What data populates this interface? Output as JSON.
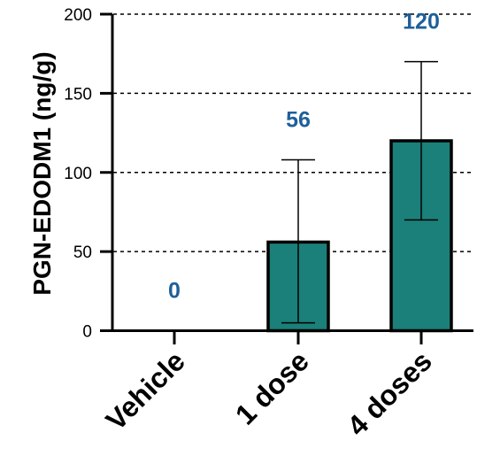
{
  "chart_data": {
    "type": "bar",
    "categories": [
      "Vehicle",
      "1 dose",
      "4 doses"
    ],
    "values": [
      0,
      56,
      120
    ],
    "error_low": [
      0,
      5,
      70
    ],
    "error_high": [
      0,
      108,
      170
    ],
    "data_labels": [
      "0",
      "56",
      "120"
    ],
    "title": "",
    "xlabel": "",
    "ylabel": "PGN-EDODM1 (ng/g)",
    "ylim": [
      0,
      200
    ],
    "yticks": [
      0,
      50,
      100,
      150,
      200
    ],
    "grid": true,
    "colors": {
      "bar": "#1a8079",
      "label": "#1f5f99"
    }
  }
}
